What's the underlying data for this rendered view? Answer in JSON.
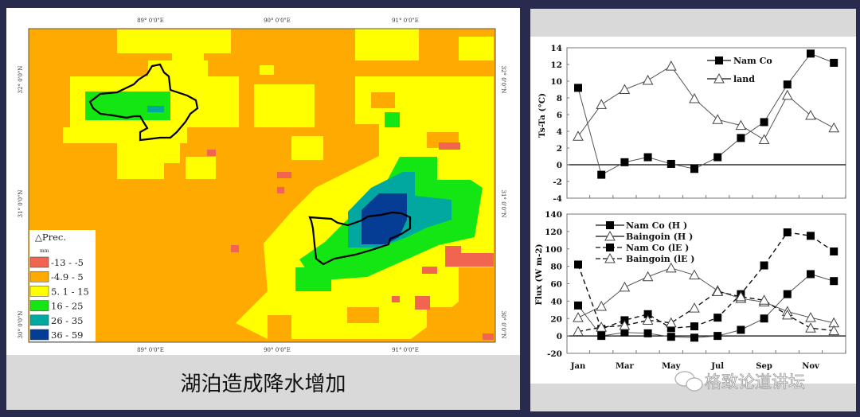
{
  "left_panel": {
    "caption": "湖泊造成降水增加",
    "map": {
      "lon_labels": [
        "89° 0'0\"E",
        "90° 0'0\"E",
        "91° 0'0\"E"
      ],
      "lat_labels": [
        "32° 0'0\"N",
        "31° 0'0\"N",
        "30° 0'0\"N"
      ],
      "legend": {
        "title": "△Prec.",
        "unit": "mm",
        "classes": [
          {
            "label": "-13 - -5",
            "color": "#f06450"
          },
          {
            "label": "-4.9 - 5",
            "color": "#ffaa00"
          },
          {
            "label": "5. 1 - 15",
            "color": "#ffff00"
          },
          {
            "label": "16 - 25",
            "color": "#14e614"
          },
          {
            "label": "26 - 35",
            "color": "#00a8a0"
          },
          {
            "label": "36 - 59",
            "color": "#053c94"
          }
        ]
      }
    }
  },
  "watermark": "格致论道讲坛",
  "chart_data": [
    {
      "type": "line",
      "xlabel": "",
      "ylabel": "Ts-Ta (°C)",
      "ylim": [
        -4,
        14
      ],
      "yticks": [
        -4,
        -2,
        0,
        2,
        4,
        6,
        8,
        10,
        12,
        14
      ],
      "x": [
        1,
        2,
        3,
        4,
        5,
        6,
        7,
        8,
        9,
        10,
        11,
        12
      ],
      "legend_position": "top-right",
      "series": [
        {
          "name": "Nam Co",
          "marker": "filled-square",
          "dash": "solid",
          "values": [
            9.2,
            -1.2,
            0.3,
            0.9,
            0.1,
            -0.5,
            0.9,
            3.2,
            5.1,
            9.6,
            13.3,
            12.2
          ]
        },
        {
          "name": "land",
          "marker": "open-triangle",
          "dash": "solid",
          "values": [
            3.4,
            7.2,
            9.0,
            10.1,
            11.8,
            7.9,
            5.4,
            4.7,
            3.0,
            8.3,
            5.9,
            4.4
          ]
        }
      ]
    },
    {
      "type": "line",
      "xlabel": "",
      "ylabel": "Flux (W m-2)",
      "ylim": [
        -20,
        140
      ],
      "yticks": [
        -20,
        0,
        20,
        40,
        60,
        80,
        100,
        120,
        140
      ],
      "x": [
        1,
        2,
        3,
        4,
        5,
        6,
        7,
        8,
        9,
        10,
        11,
        12
      ],
      "xtick_labels": [
        "Jan",
        "Mar",
        "May",
        "Jul",
        "Sep",
        "Nov"
      ],
      "legend_position": "top-left",
      "series": [
        {
          "name": "Nam Co  (H )",
          "marker": "filled-square",
          "dash": "solid",
          "values": [
            35,
            0,
            4,
            3,
            -1,
            -2,
            0,
            7,
            20,
            48,
            71,
            63
          ]
        },
        {
          "name": "Baingoin (H )",
          "marker": "open-triangle",
          "dash": "solid",
          "values": [
            21,
            34,
            56,
            68,
            78,
            70,
            52,
            43,
            39,
            28,
            21,
            15
          ]
        },
        {
          "name": "Nam Co  (lE )",
          "marker": "filled-square",
          "dash": "dashed",
          "values": [
            82,
            8,
            18,
            25,
            9,
            11,
            21,
            48,
            81,
            119,
            115,
            97
          ]
        },
        {
          "name": "Baingoin (lE )",
          "marker": "open-triangle",
          "dash": "dashed",
          "values": [
            5,
            10,
            12,
            18,
            15,
            32,
            51,
            45,
            41,
            24,
            9,
            6
          ]
        }
      ]
    }
  ]
}
